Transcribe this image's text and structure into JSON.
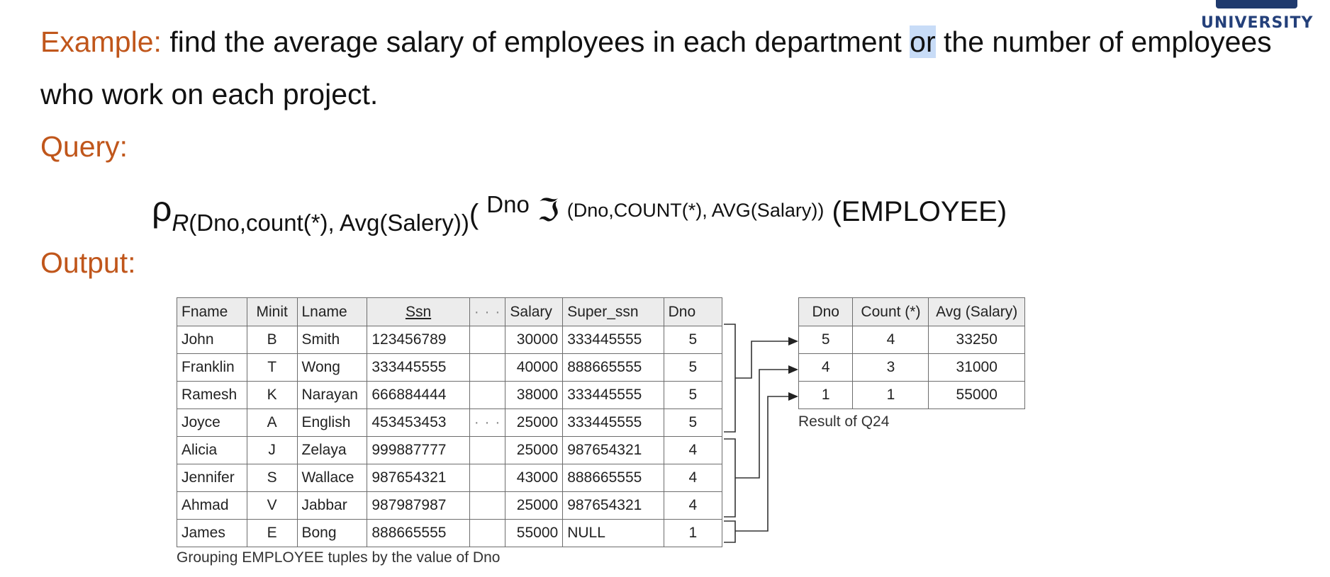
{
  "logo": {
    "text": "UNIVERSITY"
  },
  "slide": {
    "example_label": "Example:",
    "example_text_1": " find the average salary of employees in each department ",
    "example_highlight": "or",
    "example_text_2": " the number of employees",
    "example_line2": "who work on each project.",
    "query_label": "Query:",
    "output_label": "Output:"
  },
  "query": {
    "rho": "ρ",
    "rename_r": "R",
    "rename_attrs": "(Dno,count(*), Avg(Salery))",
    "open_paren": "(",
    "group_attr": "Dno",
    "script_f": "ℑ",
    "functions": "(Dno,COUNT(*), AVG(Salary))",
    "relation": "(EMPLOYEE)"
  },
  "employee_table": {
    "headers": [
      "Fname",
      "Minit",
      "Lname",
      "Ssn",
      "· · ·",
      "Salary",
      "Super_ssn",
      "Dno"
    ],
    "rows": [
      [
        "John",
        "B",
        "Smith",
        "123456789",
        "",
        "30000",
        "333445555",
        "5"
      ],
      [
        "Franklin",
        "T",
        "Wong",
        "333445555",
        "",
        "40000",
        "888665555",
        "5"
      ],
      [
        "Ramesh",
        "K",
        "Narayan",
        "666884444",
        "",
        "38000",
        "333445555",
        "5"
      ],
      [
        "Joyce",
        "A",
        "English",
        "453453453",
        "· · ·",
        "25000",
        "333445555",
        "5"
      ],
      [
        "Alicia",
        "J",
        "Zelaya",
        "999887777",
        "",
        "25000",
        "987654321",
        "4"
      ],
      [
        "Jennifer",
        "S",
        "Wallace",
        "987654321",
        "",
        "43000",
        "888665555",
        "4"
      ],
      [
        "Ahmad",
        "V",
        "Jabbar",
        "987987987",
        "",
        "25000",
        "987654321",
        "4"
      ],
      [
        "James",
        "E",
        "Bong",
        "888665555",
        "",
        "55000",
        "NULL",
        "1"
      ]
    ],
    "caption": "Grouping EMPLOYEE tuples by the value of Dno"
  },
  "result_table": {
    "headers": [
      "Dno",
      "Count (*)",
      "Avg (Salary)"
    ],
    "rows": [
      [
        "5",
        "4",
        "33250"
      ],
      [
        "4",
        "3",
        "31000"
      ],
      [
        "1",
        "1",
        "55000"
      ]
    ],
    "caption": "Result of Q24"
  },
  "colors": {
    "accent": "#c0561b",
    "highlight": "#c8dcf7",
    "logo": "#24407a"
  }
}
